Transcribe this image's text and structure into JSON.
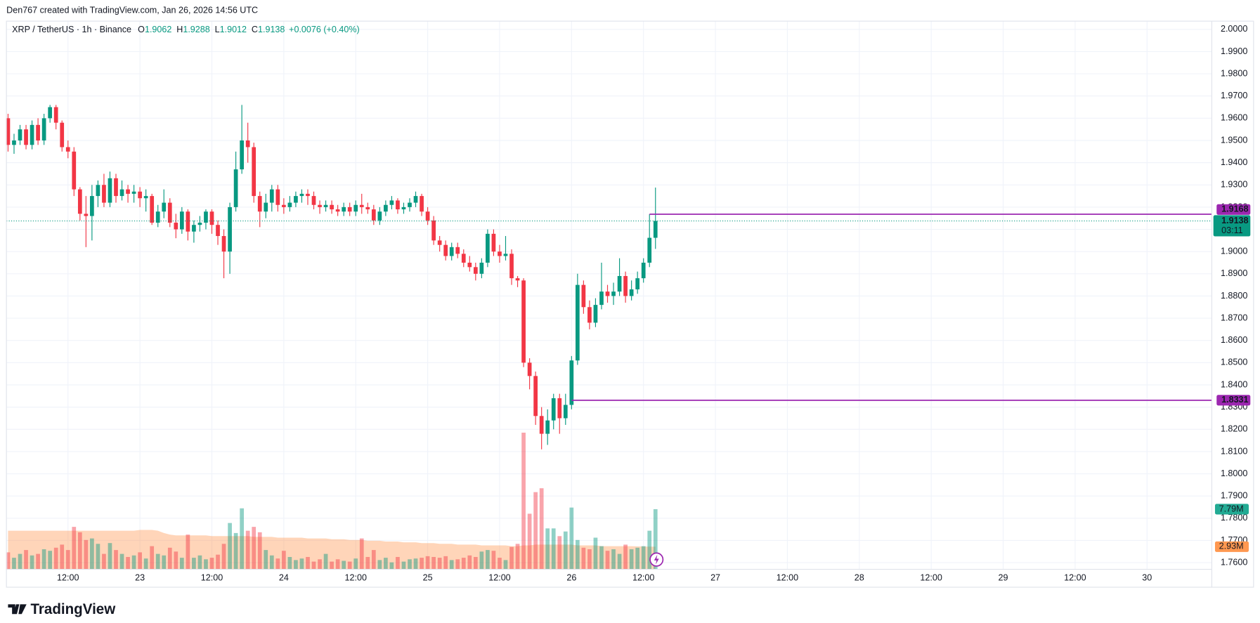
{
  "header": {
    "credit": "Den767 created with TradingView.com, Jan 26, 2026 14:56 UTC"
  },
  "footer": {
    "logo": "TradingView"
  },
  "chart_data": {
    "type": "candlestick",
    "symbol": "XRP / TetherUS · 1h · Binance",
    "ohlc_labels": [
      "O",
      "H",
      "L",
      "C"
    ],
    "ohlc_values": [
      "1.9062",
      "1.9288",
      "1.9012",
      "1.9138"
    ],
    "change": "+0.0076 (+0.40%)",
    "up_color": "#089981",
    "down_color": "#f23645",
    "open": [
      1.96,
      1.948,
      1.95,
      1.955,
      1.948,
      1.957,
      1.95,
      1.96,
      1.965,
      1.958,
      1.947,
      1.945,
      1.928,
      1.917,
      1.916,
      1.925,
      1.93,
      1.922,
      1.933,
      1.925,
      1.928,
      1.926,
      1.927,
      1.924,
      1.925,
      1.913,
      1.918,
      1.922,
      1.913,
      1.91,
      1.918,
      1.909,
      1.912,
      1.913,
      1.918,
      1.912,
      1.907,
      1.9,
      1.92,
      1.937,
      1.95,
      1.947,
      1.925,
      1.918,
      1.922,
      1.928,
      1.921,
      1.92,
      1.922,
      1.925,
      1.926,
      1.925,
      1.921,
      1.92,
      1.921,
      1.919,
      1.918,
      1.92,
      1.918,
      1.921,
      1.92,
      1.919,
      1.914,
      1.918,
      1.921,
      1.923,
      1.919,
      1.92,
      1.922,
      1.925,
      1.918,
      1.914,
      1.905,
      1.903,
      1.898,
      1.902,
      1.899,
      1.895,
      1.893,
      1.89,
      1.895,
      1.908,
      1.9,
      1.898,
      1.899,
      1.888,
      1.887,
      1.85,
      1.844,
      1.826,
      1.818,
      1.824,
      1.834,
      1.825,
      1.831,
      1.851,
      1.885,
      1.875,
      1.868,
      1.876,
      1.882,
      1.88,
      1.882,
      1.889,
      1.88,
      1.883,
      1.888,
      1.895,
      1.9062
    ],
    "high": [
      1.962,
      1.953,
      1.957,
      1.957,
      1.959,
      1.96,
      1.962,
      1.966,
      1.966,
      1.959,
      1.95,
      1.947,
      1.929,
      1.925,
      1.93,
      1.932,
      1.935,
      1.936,
      1.935,
      1.932,
      1.93,
      1.93,
      1.929,
      1.928,
      1.926,
      1.921,
      1.928,
      1.924,
      1.917,
      1.92,
      1.919,
      1.914,
      1.916,
      1.919,
      1.919,
      1.914,
      1.91,
      1.922,
      1.945,
      1.966,
      1.958,
      1.949,
      1.927,
      1.926,
      1.93,
      1.93,
      1.924,
      1.925,
      1.927,
      1.928,
      1.928,
      1.927,
      1.923,
      1.923,
      1.923,
      1.921,
      1.922,
      1.922,
      1.923,
      1.926,
      1.922,
      1.921,
      1.92,
      1.923,
      1.925,
      1.924,
      1.922,
      1.924,
      1.927,
      1.926,
      1.92,
      1.916,
      1.907,
      1.905,
      1.904,
      1.904,
      1.901,
      1.898,
      1.895,
      1.897,
      1.91,
      1.91,
      1.903,
      1.907,
      1.901,
      1.889,
      1.888,
      1.852,
      1.846,
      1.83,
      1.829,
      1.836,
      1.836,
      1.836,
      1.853,
      1.89,
      1.887,
      1.878,
      1.879,
      1.895,
      1.885,
      1.886,
      1.897,
      1.891,
      1.887,
      1.891,
      1.897,
      1.9168,
      1.9288
    ],
    "low": [
      1.945,
      1.944,
      1.948,
      1.946,
      1.946,
      1.948,
      1.948,
      1.958,
      1.955,
      1.945,
      1.942,
      1.925,
      1.914,
      1.902,
      1.905,
      1.92,
      1.92,
      1.92,
      1.922,
      1.923,
      1.922,
      1.922,
      1.92,
      1.918,
      1.912,
      1.911,
      1.915,
      1.911,
      1.906,
      1.908,
      1.905,
      1.904,
      1.909,
      1.91,
      1.908,
      1.903,
      1.888,
      1.89,
      1.918,
      1.935,
      1.94,
      1.922,
      1.911,
      1.915,
      1.918,
      1.918,
      1.917,
      1.918,
      1.92,
      1.922,
      1.921,
      1.919,
      1.917,
      1.918,
      1.917,
      1.916,
      1.916,
      1.916,
      1.916,
      1.917,
      1.917,
      1.912,
      1.912,
      1.916,
      1.919,
      1.917,
      1.917,
      1.918,
      1.92,
      1.916,
      1.912,
      1.903,
      1.9,
      1.896,
      1.896,
      1.897,
      1.893,
      1.891,
      1.887,
      1.888,
      1.893,
      1.898,
      1.895,
      1.896,
      1.885,
      1.884,
      1.848,
      1.838,
      1.822,
      1.811,
      1.813,
      1.82,
      1.818,
      1.822,
      1.829,
      1.849,
      1.872,
      1.865,
      1.866,
      1.874,
      1.877,
      1.876,
      1.88,
      1.877,
      1.878,
      1.881,
      1.886,
      1.893,
      1.9012
    ],
    "close": [
      1.948,
      1.95,
      1.955,
      1.948,
      1.957,
      1.95,
      1.96,
      1.965,
      1.958,
      1.947,
      1.945,
      1.928,
      1.917,
      1.916,
      1.925,
      1.93,
      1.922,
      1.933,
      1.925,
      1.928,
      1.926,
      1.927,
      1.924,
      1.925,
      1.913,
      1.918,
      1.922,
      1.913,
      1.91,
      1.918,
      1.909,
      1.912,
      1.913,
      1.918,
      1.912,
      1.907,
      1.9,
      1.92,
      1.937,
      1.95,
      1.947,
      1.925,
      1.918,
      1.922,
      1.928,
      1.921,
      1.92,
      1.922,
      1.925,
      1.926,
      1.925,
      1.921,
      1.92,
      1.921,
      1.919,
      1.918,
      1.92,
      1.918,
      1.921,
      1.92,
      1.919,
      1.914,
      1.918,
      1.921,
      1.923,
      1.919,
      1.92,
      1.922,
      1.925,
      1.918,
      1.914,
      1.905,
      1.903,
      1.898,
      1.902,
      1.899,
      1.895,
      1.893,
      1.89,
      1.895,
      1.908,
      1.9,
      1.898,
      1.899,
      1.888,
      1.887,
      1.85,
      1.844,
      1.826,
      1.818,
      1.824,
      1.834,
      1.825,
      1.831,
      1.851,
      1.885,
      1.875,
      1.868,
      1.876,
      1.882,
      1.88,
      1.882,
      1.889,
      1.88,
      1.883,
      1.888,
      1.895,
      1.9062,
      1.9138
    ],
    "volume": [
      2.2,
      1.5,
      2.0,
      2.5,
      1.8,
      2.0,
      2.6,
      2.4,
      2.8,
      3.2,
      2.5,
      5.5,
      4.8,
      3.8,
      4.0,
      3.3,
      2.0,
      3.4,
      2.5,
      2.0,
      1.6,
      1.8,
      2.2,
      1.4,
      3.0,
      2.0,
      1.8,
      2.8,
      2.3,
      1.5,
      4.5,
      1.5,
      1.8,
      1.3,
      1.5,
      1.9,
      3.3,
      6.0,
      4.7,
      7.9,
      5.0,
      5.5,
      4.8,
      2.5,
      1.8,
      1.4,
      2.4,
      1.6,
      1.2,
      1.4,
      1.6,
      1.0,
      1.3,
      2.0,
      1.0,
      1.3,
      1.1,
      1.0,
      1.4,
      4.0,
      1.6,
      2.5,
      1.2,
      1.5,
      0.9,
      1.6,
      1.0,
      1.3,
      1.4,
      1.5,
      1.7,
      1.6,
      1.5,
      1.7,
      1.2,
      1.3,
      1.5,
      1.8,
      1.6,
      2.3,
      2.5,
      2.4,
      1.5,
      1.2,
      2.9,
      3.3,
      17.7,
      7.2,
      10.0,
      10.5,
      5.3,
      5.3,
      4.3,
      4.9,
      8.0,
      3.8,
      2.8,
      2.6,
      4.1,
      3.0,
      2.4,
      2.6,
      2.0,
      3.2,
      2.6,
      2.8,
      3.0,
      5.0,
      7.79
    ],
    "volume_last_label": "7.79M",
    "volume_ma": [
      5.0,
      5.0,
      5.0,
      5.0,
      5.0,
      5.0,
      5.0,
      5.0,
      5.0,
      5.0,
      5.0,
      5.0,
      5.0,
      5.0,
      5.0,
      5.0,
      5.0,
      5.0,
      5.0,
      5.0,
      5.0,
      5.0,
      5.1,
      5.1,
      5.1,
      5.0,
      4.7,
      4.5,
      4.4,
      4.4,
      4.4,
      4.4,
      4.4,
      4.4,
      4.3,
      4.3,
      4.3,
      4.3,
      4.3,
      4.3,
      4.3,
      4.2,
      4.2,
      4.2,
      4.2,
      4.1,
      4.1,
      4.1,
      4.1,
      4.1,
      4.0,
      4.0,
      4.0,
      4.0,
      3.9,
      3.9,
      3.9,
      3.8,
      3.8,
      3.8,
      3.7,
      3.7,
      3.7,
      3.6,
      3.6,
      3.6,
      3.5,
      3.5,
      3.5,
      3.4,
      3.4,
      3.4,
      3.3,
      3.3,
      3.3,
      3.2,
      3.2,
      3.2,
      3.2,
      3.1,
      3.1,
      3.1,
      3.1,
      3.1,
      3.0,
      3.0,
      3.1,
      3.1,
      3.2,
      3.2,
      3.2,
      3.2,
      3.2,
      3.2,
      3.2,
      3.1,
      3.1,
      3.1,
      3.1,
      3.0,
      3.0,
      3.0,
      3.0,
      3.0,
      3.0,
      2.97,
      2.95,
      2.94,
      2.93
    ],
    "volume_ma_last_label": "2.93M",
    "volume_up_color": "rgba(8,153,129,0.45)",
    "volume_down_color": "rgba(242,54,69,0.45)",
    "volume_ma_color": "rgba(255,145,70,0.38)",
    "volume_label_color": "#22ab94",
    "volume_ma_label_color": "#ff9850",
    "vlim": [
      0,
      71
    ],
    "countdown": "03:11",
    "levels": [
      {
        "value": 1.9168,
        "x_start": 107,
        "color": "#9c27b0"
      },
      {
        "value": 1.8331,
        "x_start": 94,
        "color": "#9c27b0"
      }
    ],
    "xlim": [
      -0.27,
      200.8
    ],
    "xticks": [
      {
        "value": 10,
        "label": "12:00"
      },
      {
        "value": 22,
        "label": "23"
      },
      {
        "value": 34,
        "label": "12:00"
      },
      {
        "value": 46,
        "label": "24"
      },
      {
        "value": 58,
        "label": "12:00"
      },
      {
        "value": 70,
        "label": "25"
      },
      {
        "value": 82,
        "label": "12:00"
      },
      {
        "value": 94,
        "label": "26"
      },
      {
        "value": 106,
        "label": "12:00"
      },
      {
        "value": 118,
        "label": "27"
      },
      {
        "value": 130,
        "label": "12:00"
      },
      {
        "value": 142,
        "label": "28"
      },
      {
        "value": 154,
        "label": "12:00"
      },
      {
        "value": 166,
        "label": "29"
      },
      {
        "value": 178,
        "label": "12:00"
      },
      {
        "value": 190,
        "label": "30"
      }
    ],
    "ylim": [
      1.757,
      2.0037
    ],
    "yticks": [
      {
        "value": 1.76,
        "label": "1.7600"
      },
      {
        "value": 1.77,
        "label": "1.7700"
      },
      {
        "value": 1.78,
        "label": "1.7800"
      },
      {
        "value": 1.79,
        "label": "1.7900"
      },
      {
        "value": 1.8,
        "label": "1.8000"
      },
      {
        "value": 1.81,
        "label": "1.8100"
      },
      {
        "value": 1.82,
        "label": "1.8200"
      },
      {
        "value": 1.83,
        "label": "1.8300"
      },
      {
        "value": 1.84,
        "label": "1.8400"
      },
      {
        "value": 1.85,
        "label": "1.8500"
      },
      {
        "value": 1.86,
        "label": "1.8600"
      },
      {
        "value": 1.87,
        "label": "1.8700"
      },
      {
        "value": 1.88,
        "label": "1.8800"
      },
      {
        "value": 1.89,
        "label": "1.8900"
      },
      {
        "value": 1.9,
        "label": "1.9000"
      },
      {
        "value": 1.91,
        "label": "1.9100"
      },
      {
        "value": 1.92,
        "label": "1.9200"
      },
      {
        "value": 1.93,
        "label": "1.9300"
      },
      {
        "value": 1.94,
        "label": "1.9400"
      },
      {
        "value": 1.95,
        "label": "1.9500"
      },
      {
        "value": 1.96,
        "label": "1.9600"
      },
      {
        "value": 1.97,
        "label": "1.9700"
      },
      {
        "value": 1.98,
        "label": "1.9800"
      },
      {
        "value": 1.99,
        "label": "1.9900"
      },
      {
        "value": 2.0,
        "label": "2.0000"
      }
    ],
    "grid": true
  }
}
